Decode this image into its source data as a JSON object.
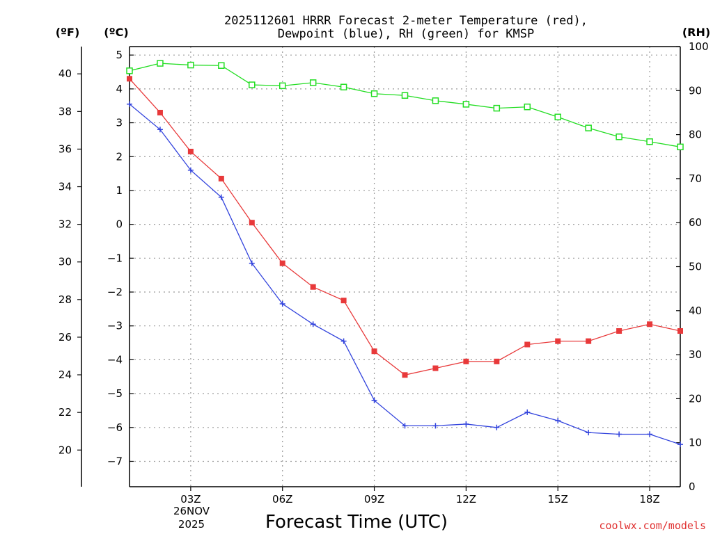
{
  "chart_data": {
    "type": "line",
    "title_line1": "2025112601 HRRR Forecast 2-meter Temperature (red),",
    "title_line2": "Dewpoint (blue), RH (green) for KMSP",
    "xlabel": "Forecast Time (UTC)",
    "unit_f": "(ºF)",
    "unit_c": "(ºC)",
    "unit_rh": "(RH)",
    "date_line1": "26NOV",
    "date_line2": "2025",
    "credit": "coolwx.com/models",
    "colors": {
      "temp": "#e8393a",
      "dew": "#3344dd",
      "rh": "#22dd22",
      "credit": "#e03030",
      "grid": "#999999"
    },
    "xlim": [
      1,
      19
    ],
    "x_ticks": [
      {
        "x": 3,
        "label": "03Z"
      },
      {
        "x": 6,
        "label": "06Z"
      },
      {
        "x": 9,
        "label": "09Z"
      },
      {
        "x": 12,
        "label": "12Z"
      },
      {
        "x": 15,
        "label": "15Z"
      },
      {
        "x": 18,
        "label": "18Z"
      }
    ],
    "y_c_lim": [
      -7.75,
      5.25
    ],
    "y_c_ticks": [
      {
        "v": 5,
        "label": "5"
      },
      {
        "v": 4,
        "label": "4"
      },
      {
        "v": 3,
        "label": "3"
      },
      {
        "v": 2,
        "label": "2"
      },
      {
        "v": 1,
        "label": "1"
      },
      {
        "v": 0,
        "label": "0"
      },
      {
        "v": -1,
        "label": "−1"
      },
      {
        "v": -2,
        "label": "−2"
      },
      {
        "v": -3,
        "label": "−3"
      },
      {
        "v": -4,
        "label": "−4"
      },
      {
        "v": -5,
        "label": "−5"
      },
      {
        "v": -6,
        "label": "−6"
      },
      {
        "v": -7,
        "label": "−7"
      }
    ],
    "y_f_ticks": [
      {
        "v": 40,
        "label": "40"
      },
      {
        "v": 38,
        "label": "38"
      },
      {
        "v": 36,
        "label": "36"
      },
      {
        "v": 34,
        "label": "34"
      },
      {
        "v": 32,
        "label": "32"
      },
      {
        "v": 30,
        "label": "30"
      },
      {
        "v": 28,
        "label": "28"
      },
      {
        "v": 26,
        "label": "26"
      },
      {
        "v": 24,
        "label": "24"
      },
      {
        "v": 22,
        "label": "22"
      },
      {
        "v": 20,
        "label": "20"
      }
    ],
    "y_rh_lim": [
      0,
      100
    ],
    "y_rh_ticks": [
      {
        "v": 100,
        "label": "100"
      },
      {
        "v": 90,
        "label": "90"
      },
      {
        "v": 80,
        "label": "80"
      },
      {
        "v": 70,
        "label": "70"
      },
      {
        "v": 60,
        "label": "60"
      },
      {
        "v": 50,
        "label": "50"
      },
      {
        "v": 40,
        "label": "40"
      },
      {
        "v": 30,
        "label": "30"
      },
      {
        "v": 20,
        "label": "20"
      },
      {
        "v": 10,
        "label": "10"
      },
      {
        "v": 0,
        "label": "0"
      }
    ],
    "x": [
      1,
      2,
      3,
      4,
      5,
      6,
      7,
      8,
      9,
      10,
      11,
      12,
      13,
      14,
      15,
      16,
      17,
      18,
      19
    ],
    "series": [
      {
        "name": "Temperature",
        "unit": "C",
        "values": [
          4.3,
          3.3,
          2.15,
          1.35,
          0.05,
          -1.15,
          -1.85,
          -2.25,
          -3.75,
          -4.45,
          -4.25,
          -4.05,
          -4.05,
          -3.55,
          -3.45,
          -3.45,
          -3.15,
          -2.95,
          -3.15
        ]
      },
      {
        "name": "Dewpoint",
        "unit": "C",
        "values": [
          3.55,
          2.8,
          1.6,
          0.8,
          -1.15,
          -2.35,
          -2.95,
          -3.45,
          -5.2,
          -5.95,
          -5.95,
          -5.9,
          -6.0,
          -5.55,
          -5.8,
          -6.15,
          -6.2,
          -6.2,
          -6.5
        ]
      },
      {
        "name": "RH",
        "unit": "%",
        "values": [
          94.5,
          96.2,
          95.8,
          95.7,
          91.3,
          91.1,
          91.8,
          90.8,
          89.3,
          88.9,
          87.7,
          86.9,
          86.0,
          86.3,
          84.0,
          81.5,
          79.5,
          78.4,
          77.2
        ]
      }
    ]
  }
}
